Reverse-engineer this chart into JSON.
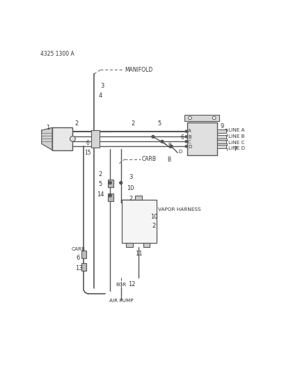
{
  "title": "4325 1300 A",
  "bg_color": "#ffffff",
  "lc": "#555555",
  "tc": "#333333",
  "figsize": [
    4.08,
    5.33
  ],
  "dpi": 100,
  "labels": {
    "manifold": "MANIFOLD",
    "carb_top": "CARB",
    "carb_left": "CARB",
    "vapor_harness": "VAPOR HARNESS",
    "egr": "EGR",
    "air_pump": "AIR PUMP",
    "line_a": "LINE A",
    "line_b": "LINE B",
    "line_c": "LINE C",
    "line_d": "LINE D"
  }
}
